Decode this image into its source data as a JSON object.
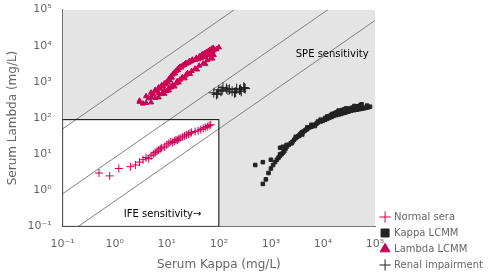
{
  "chart_data": {
    "type": "scatter",
    "log": true,
    "xlim": [
      0.1,
      100000
    ],
    "ylim": [
      0.1,
      100000
    ],
    "xticks": [
      {
        "value": 0.1,
        "label": "10⁻¹"
      },
      {
        "value": 1,
        "label": "10⁰"
      },
      {
        "value": 10,
        "label": "10¹"
      },
      {
        "value": 100,
        "label": "10²"
      },
      {
        "value": 1000,
        "label": "10³"
      },
      {
        "value": 10000,
        "label": "10⁴"
      },
      {
        "value": 100000,
        "label": "10⁵"
      }
    ],
    "yticks": [
      {
        "value": 0.1,
        "label": "10⁻¹"
      },
      {
        "value": 1,
        "label": "10⁰"
      },
      {
        "value": 10,
        "label": "10¹"
      },
      {
        "value": 100,
        "label": "10²"
      },
      {
        "value": 1000,
        "label": "10³"
      },
      {
        "value": 10000,
        "label": "10⁴"
      },
      {
        "value": 100000,
        "label": "10⁵"
      }
    ],
    "xlabel": "Serum Kappa (mg/L)",
    "ylabel": "Serum Lambda (mg/L)",
    "grid": false,
    "legend": "lower right",
    "legend_entries": [
      "Normal sera",
      "Kappa LCMM",
      "Lambda LCMM",
      "Renal impairment"
    ],
    "series": [
      {
        "name": "Normal sera",
        "color": "#cc0055",
        "marker": "+",
        "x": [
          0.5,
          0.8,
          1.2,
          2.0,
          2.5,
          3.0,
          3.5,
          4.0,
          4.5,
          5.0,
          5.5,
          6.0,
          6.5,
          7.0,
          7.5,
          8.0,
          9.0,
          10.0,
          11.0,
          12.0,
          13.0,
          14.0,
          15.0,
          16.0,
          17.0,
          18.0,
          20.0,
          22.0,
          24.0,
          26.0,
          28.0,
          30.0,
          35.0,
          40.0,
          45.0,
          50.0,
          55.0,
          60.0,
          65.0,
          70.0
        ],
        "y": [
          3.0,
          2.5,
          4.0,
          4.5,
          5.0,
          6.0,
          7.0,
          8.0,
          7.5,
          9.0,
          10.0,
          11.0,
          12.0,
          13.0,
          14.0,
          15.0,
          16.0,
          18.0,
          20.0,
          22.0,
          21.0,
          23.0,
          25.0,
          24.0,
          26.0,
          28.0,
          30.0,
          32.0,
          34.0,
          36.0,
          38.0,
          40.0,
          42.0,
          44.0,
          48.0,
          52.0,
          55.0,
          58.0,
          62.0,
          65.0
        ]
      },
      {
        "name": "Lambda LCMM",
        "color": "#cc0055",
        "marker": "^",
        "x": [
          3.0,
          4.0,
          5.0,
          6.0,
          7.0,
          8.0,
          9.0,
          10.0,
          11.0,
          12.0,
          13.0,
          14.0,
          15.0,
          16.0,
          17.0,
          18.0,
          20.0,
          22.0,
          24.0,
          26.0,
          28.0,
          30.0,
          35.0,
          40.0,
          45.0,
          50.0,
          55.0,
          60.0,
          65.0,
          70.0,
          75.0,
          80.0,
          90.0,
          100.0,
          3.5,
          4.5,
          5.5,
          6.5,
          7.5,
          8.5,
          9.5,
          10.5,
          11.5,
          12.5,
          14.5,
          16.5,
          19.0,
          21.0,
          23.0,
          27.0,
          31.0,
          37.0,
          43.0,
          48.0,
          53.0,
          58.0,
          63.0,
          68.0,
          73.0,
          78.0,
          3.0,
          5.0,
          7.0,
          9.0,
          11.0,
          13.0,
          16.0,
          20.0,
          25.0,
          35.0,
          50.0,
          70.0,
          4.0,
          6.0,
          8.0,
          10.0,
          12.0,
          15.0,
          18.0,
          23.0,
          30.0,
          42.0,
          60.0,
          80.0,
          5.0,
          7.0,
          9.0,
          11.0,
          14.0,
          17.0,
          22.0,
          28.0,
          38.0,
          55.0,
          75.0
        ],
        "y": [
          300.0,
          400.0,
          500.0,
          600.0,
          700.0,
          800.0,
          900.0,
          1000.0,
          1200.0,
          1400.0,
          1600.0,
          1800.0,
          2000.0,
          2200.0,
          2400.0,
          2600.0,
          2800.0,
          3000.0,
          3200.0,
          3400.0,
          3600.0,
          3800.0,
          4000.0,
          4200.0,
          4500.0,
          4800.0,
          5000.0,
          5500.0,
          6000.0,
          6500.0,
          7000.0,
          7500.0,
          8000.0,
          9000.0,
          250.0,
          350.0,
          450.0,
          550.0,
          650.0,
          750.0,
          850.0,
          950.0,
          1100.0,
          1300.0,
          1700.0,
          2100.0,
          2500.0,
          2900.0,
          3300.0,
          3700.0,
          4100.0,
          4600.0,
          5200.0,
          5800.0,
          6200.0,
          6700.0,
          7200.0,
          7700.0,
          8200.0,
          8700.0,
          280.0,
          380.0,
          480.0,
          580.0,
          680.0,
          820.0,
          1050.0,
          1350.0,
          1750.0,
          2300.0,
          3200.0,
          4500.0,
          260.0,
          360.0,
          460.0,
          560.0,
          700.0,
          900.0,
          1150.0,
          1500.0,
          2000.0,
          2800.0,
          4000.0,
          5500.0,
          270.0,
          370.0,
          470.0,
          580.0,
          740.0,
          960.0,
          1250.0,
          1650.0,
          2200.0,
          3100.0,
          4400.0
        ]
      },
      {
        "name": "Kappa LCMM",
        "color": "#222222",
        "marker": "s",
        "x": [
          700,
          800,
          900,
          1000,
          1100,
          1200,
          1300,
          1400,
          1500,
          1600,
          1700,
          1800,
          1900,
          2000,
          2200,
          2400,
          2600,
          2800,
          3000,
          3200,
          3400,
          3600,
          3800,
          4000,
          4200,
          4500,
          4800,
          5000,
          5500,
          6000,
          6500,
          7000,
          7500,
          8000,
          9000,
          10000,
          11000,
          12000,
          13000,
          14000,
          15000,
          16000,
          18000,
          20000,
          22000,
          24000,
          26000,
          28000,
          30000,
          32000,
          35000,
          40000,
          45000,
          50000,
          55000,
          60000,
          65000,
          70000,
          75000,
          80000,
          1500,
          2500,
          4000,
          6000,
          9000,
          12000,
          18000,
          25000,
          35000,
          50000,
          70000,
          500,
          1500,
          3000,
          5000,
          8000,
          11000,
          15000,
          20000,
          28000,
          40000,
          55000,
          1000,
          2000,
          4000,
          7000,
          10000,
          14000,
          19000,
          26000,
          38000,
          52000,
          700,
          1700,
          3500,
          6000,
          9500,
          13000,
          17000,
          23000,
          33000,
          45000
        ],
        "y": [
          1.5,
          2.0,
          3.0,
          4.0,
          5.0,
          6.0,
          7.0,
          8.0,
          9.0,
          10.0,
          11.0,
          12.0,
          14.0,
          16.0,
          18.0,
          20.0,
          22.0,
          25.0,
          28.0,
          30.0,
          32.0,
          35.0,
          38.0,
          40.0,
          42.0,
          45.0,
          48.0,
          50.0,
          55.0,
          58.0,
          62.0,
          65.0,
          70.0,
          75.0,
          80.0,
          85.0,
          90.0,
          95.0,
          100.0,
          105.0,
          110.0,
          115.0,
          120.0,
          125.0,
          130.0,
          135.0,
          140.0,
          145.0,
          150.0,
          155.0,
          160.0,
          165.0,
          170.0,
          175.0,
          180.0,
          185.0,
          190.0,
          195.0,
          200.0,
          205.0,
          10.0,
          20.0,
          40.0,
          65.0,
          90.0,
          110.0,
          140.0,
          170.0,
          190.0,
          200.0,
          220.0,
          5.0,
          15.0,
          30.0,
          55.0,
          80.0,
          100.0,
          130.0,
          160.0,
          185.0,
          215.0,
          240.0,
          7.0,
          18.0,
          35.0,
          60.0,
          88.0,
          118.0,
          148.0,
          175.0,
          195.0,
          225.0,
          6.0,
          16.0,
          32.0,
          58.0,
          85.0,
          108.0,
          138.0,
          165.0,
          182.0,
          210.0
        ]
      },
      {
        "name": "Renal impairment",
        "color": "#222222",
        "marker": "+",
        "x": [
          80.0,
          100.0,
          120.0,
          150.0,
          200.0,
          250.0,
          300.0,
          90.0,
          110.0,
          140.0,
          180.0,
          220.0,
          270.0,
          320.0,
          95.0,
          115.0,
          160.0,
          210.0,
          260.0,
          310.0
        ],
        "y": [
          500.0,
          600.0,
          700.0,
          600.0,
          500.0,
          600.0,
          700.0,
          450.0,
          550.0,
          650.0,
          550.0,
          650.0,
          550.0,
          650.0,
          480.0,
          580.0,
          620.0,
          520.0,
          620.0,
          680.0
        ]
      }
    ],
    "reference_lines": [
      {
        "color": "gray",
        "x": [
          0.1,
          12500
        ],
        "y": [
          0.8,
          100000
        ]
      },
      {
        "color": "gray",
        "x": [
          0.2,
          100000
        ],
        "y": [
          0.1,
          50000
        ]
      },
      {
        "color": "gray",
        "x": [
          0.1,
          200
        ],
        "y": [
          50,
          100000
        ]
      }
    ],
    "ife_box": {
      "x": 100,
      "y": 90
    },
    "annotations": [
      {
        "text": "SPE sensitivity",
        "x": 3000,
        "y": 5000
      },
      {
        "text": "IFE sensitivity→",
        "x": 1.5,
        "y": 0.18
      }
    ]
  }
}
